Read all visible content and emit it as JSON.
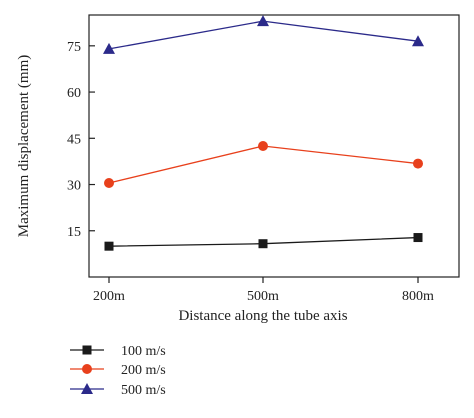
{
  "chart_data": {
    "type": "line",
    "title": "",
    "xlabel": "Distance along the tube axis",
    "ylabel": "Maximum displacement (mm)",
    "categories": [
      "200m",
      "500m",
      "800m"
    ],
    "ylim": [
      0,
      85
    ],
    "yticks": [
      15,
      30,
      45,
      60,
      75
    ],
    "grid": false,
    "legend_position": "bottom-left",
    "series": [
      {
        "name": "100 m/s",
        "values": [
          10,
          10.8,
          12.8
        ],
        "color": "#1a1a1a",
        "marker": "square"
      },
      {
        "name": "200 m/s",
        "values": [
          30.5,
          42.5,
          36.8
        ],
        "color": "#e8401c",
        "marker": "circle"
      },
      {
        "name": "500 m/s",
        "values": [
          74,
          83,
          76.5
        ],
        "color": "#2b2a8a",
        "marker": "triangle"
      }
    ]
  }
}
